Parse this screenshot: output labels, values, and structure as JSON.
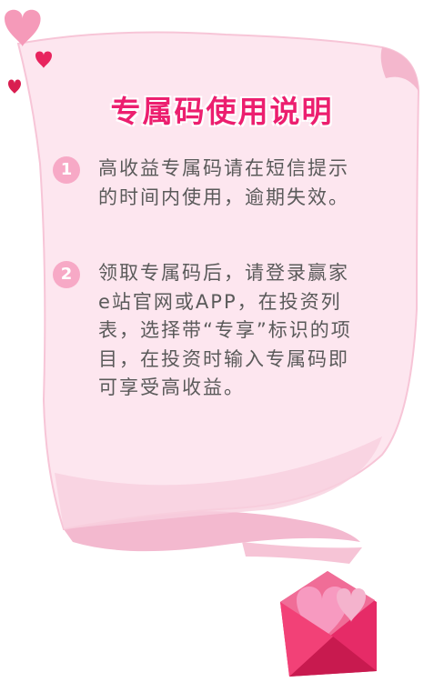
{
  "title": "专属码使用说明",
  "instructions": [
    {
      "number": "1",
      "text": "高收益专属码请在短信提示的时间内使用，逾期失效。"
    },
    {
      "number": "2",
      "text": "领取专属码后，请登录赢家e站官网或APP，在投资列表，选择带“专享”标识的项目，在投资时输入专属码即可享受高收益。"
    }
  ],
  "colors": {
    "title": "#ec1f6f",
    "paper": "#fde6ef",
    "badge": "#f7a9c6",
    "envelope": "#e62b67",
    "text": "#5a5a5a"
  },
  "icons": [
    "heart-icon",
    "envelope-icon"
  ]
}
